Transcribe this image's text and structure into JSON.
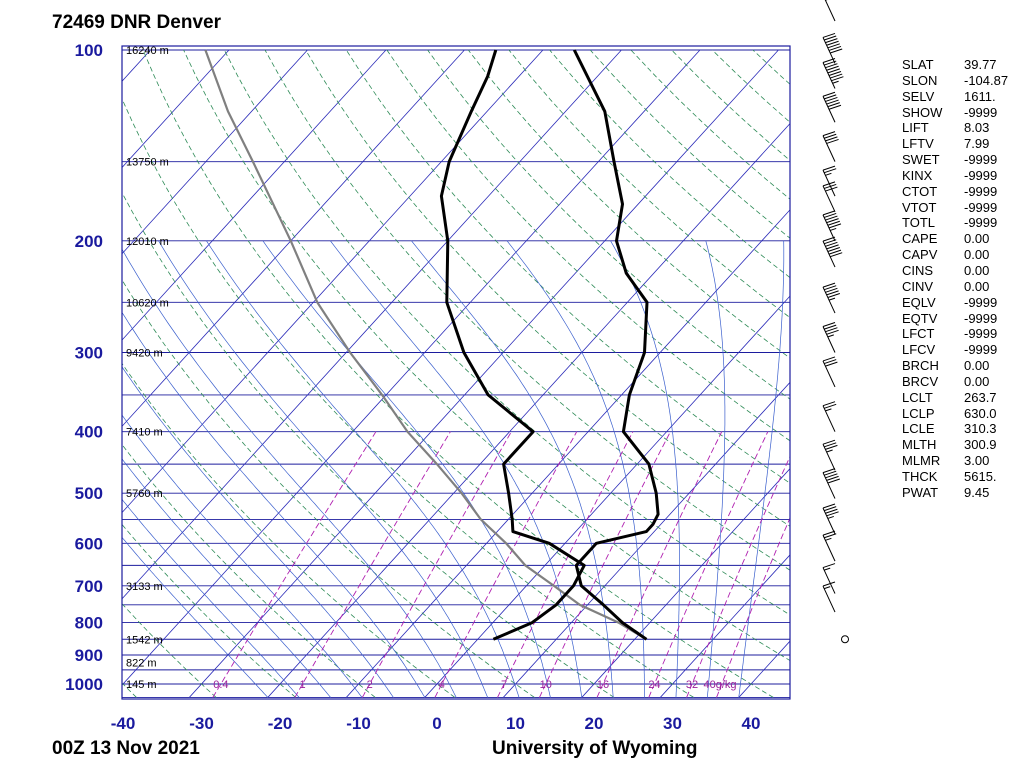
{
  "header": {
    "title": "72469 DNR Denver"
  },
  "footer": {
    "date": "00Z 13 Nov 2021",
    "source": "University of Wyoming"
  },
  "colors": {
    "isobar": "#1c1c9e",
    "isotherm": "#2a2ab8",
    "dry_adiabat": "#2e8b57",
    "moist_adiabat": "#3a5fcd",
    "mixing_ratio": "#b020b0",
    "profile": "#000000",
    "parcel": "#808080",
    "pressure_label": "#1a1a9e",
    "mixing_label": "#9b209b"
  },
  "chart_data": {
    "type": "skew-t",
    "pressure_levels": [
      100,
      200,
      300,
      400,
      500,
      600,
      700,
      800,
      900,
      1000
    ],
    "pressure_labels": [
      "100",
      "200",
      "300",
      "400",
      "500",
      "600",
      "700",
      "800",
      "900",
      "1000"
    ],
    "temperature_ticks": [
      -40,
      -30,
      -20,
      -10,
      0,
      10,
      20,
      30,
      40
    ],
    "temperature_labels": [
      "-40",
      "-30",
      "-20",
      "-10",
      "0",
      "10",
      "20",
      "30",
      "40"
    ],
    "xlim": [
      -40,
      45
    ],
    "ylim": [
      1050,
      100
    ],
    "height_labels": [
      {
        "p": 100,
        "text": "16240 m"
      },
      {
        "p": 150,
        "text": "13750 m"
      },
      {
        "p": 200,
        "text": "12010 m"
      },
      {
        "p": 250,
        "text": "10620 m"
      },
      {
        "p": 300,
        "text": "9420 m"
      },
      {
        "p": 400,
        "text": "7410 m"
      },
      {
        "p": 500,
        "text": "5760 m"
      },
      {
        "p": 700,
        "text": "3133 m"
      },
      {
        "p": 850,
        "text": "1542 m"
      },
      {
        "p": 925,
        "text": "822 m"
      },
      {
        "p": 1000,
        "text": "145 m"
      }
    ],
    "mixing_ratio_labels": [
      "0.4",
      "1",
      "2",
      "4",
      "7",
      "10",
      "16",
      "24",
      "32",
      "40g/kg"
    ],
    "temperature_profile": [
      [
        850,
        21.5
      ],
      [
        800,
        16.5
      ],
      [
        750,
        12
      ],
      [
        700,
        7
      ],
      [
        650,
        4
      ],
      [
        600,
        4
      ],
      [
        575,
        9
      ],
      [
        560,
        9
      ],
      [
        540,
        8.5
      ],
      [
        500,
        5.8
      ],
      [
        450,
        1.5
      ],
      [
        400,
        -5.5
      ],
      [
        350,
        -9
      ],
      [
        300,
        -12
      ],
      [
        250,
        -17.5
      ],
      [
        225,
        -23.5
      ],
      [
        200,
        -28.5
      ],
      [
        175,
        -32
      ],
      [
        150,
        -38
      ],
      [
        125,
        -45
      ],
      [
        100,
        -56
      ]
    ],
    "dewpoint_profile": [
      [
        850,
        2
      ],
      [
        800,
        5
      ],
      [
        750,
        6
      ],
      [
        700,
        6
      ],
      [
        650,
        5
      ],
      [
        600,
        -2
      ],
      [
        575,
        -8
      ],
      [
        550,
        -9.5
      ],
      [
        500,
        -13
      ],
      [
        450,
        -17
      ],
      [
        400,
        -17
      ],
      [
        350,
        -27
      ],
      [
        300,
        -35
      ],
      [
        250,
        -43
      ],
      [
        200,
        -50
      ],
      [
        170,
        -56
      ],
      [
        150,
        -59
      ],
      [
        125,
        -62
      ],
      [
        110,
        -64
      ],
      [
        100,
        -66
      ]
    ],
    "parcel_path": [
      [
        850,
        21.5
      ],
      [
        800,
        16
      ],
      [
        750,
        9
      ],
      [
        700,
        3.5
      ],
      [
        650,
        -2.5
      ],
      [
        600,
        -7.5
      ],
      [
        550,
        -13.5
      ],
      [
        500,
        -19
      ],
      [
        450,
        -25.5
      ],
      [
        400,
        -33
      ],
      [
        350,
        -40.5
      ],
      [
        300,
        -49.5
      ],
      [
        250,
        -59.5
      ],
      [
        200,
        -70
      ],
      [
        150,
        -84
      ],
      [
        125,
        -93
      ],
      [
        100,
        -103
      ]
    ],
    "wind_barbs": [
      {
        "p": 90,
        "knots": 30
      },
      {
        "p": 105,
        "knots": 70
      },
      {
        "p": 115,
        "knots": 85
      },
      {
        "p": 130,
        "knots": 60
      },
      {
        "p": 150,
        "knots": 40
      },
      {
        "p": 170,
        "knots": 25
      },
      {
        "p": 180,
        "knots": 30
      },
      {
        "p": 200,
        "knots": 65
      },
      {
        "p": 220,
        "knots": 70
      },
      {
        "p": 260,
        "knots": 55
      },
      {
        "p": 300,
        "knots": 45
      },
      {
        "p": 340,
        "knots": 30
      },
      {
        "p": 400,
        "knots": 25
      },
      {
        "p": 460,
        "knots": 35
      },
      {
        "p": 510,
        "knots": 50
      },
      {
        "p": 580,
        "knots": 45
      },
      {
        "p": 640,
        "knots": 25
      },
      {
        "p": 720,
        "knots": 15
      },
      {
        "p": 770,
        "knots": 15
      },
      {
        "p": 850,
        "knots": 0
      }
    ]
  },
  "indices": [
    {
      "key": "SLAT",
      "value": "39.77"
    },
    {
      "key": "SLON",
      "value": "-104.87"
    },
    {
      "key": "SELV",
      "value": "1611."
    },
    {
      "key": "SHOW",
      "value": "-9999"
    },
    {
      "key": "LIFT",
      "value": "8.03"
    },
    {
      "key": "LFTV",
      "value": "7.99"
    },
    {
      "key": "SWET",
      "value": "-9999"
    },
    {
      "key": "KINX",
      "value": "-9999"
    },
    {
      "key": "CTOT",
      "value": "-9999"
    },
    {
      "key": "VTOT",
      "value": "-9999"
    },
    {
      "key": "TOTL",
      "value": "-9999"
    },
    {
      "key": "CAPE",
      "value": "0.00"
    },
    {
      "key": "CAPV",
      "value": "0.00"
    },
    {
      "key": "CINS",
      "value": "0.00"
    },
    {
      "key": "CINV",
      "value": "0.00"
    },
    {
      "key": "EQLV",
      "value": "-9999"
    },
    {
      "key": "EQTV",
      "value": "-9999"
    },
    {
      "key": "LFCT",
      "value": "-9999"
    },
    {
      "key": "LFCV",
      "value": "-9999"
    },
    {
      "key": "BRCH",
      "value": "0.00"
    },
    {
      "key": "BRCV",
      "value": "0.00"
    },
    {
      "key": "LCLT",
      "value": "263.7"
    },
    {
      "key": "LCLP",
      "value": "630.0"
    },
    {
      "key": "LCLE",
      "value": "310.3"
    },
    {
      "key": "MLTH",
      "value": "300.9"
    },
    {
      "key": "MLMR",
      "value": "3.00"
    },
    {
      "key": "THCK",
      "value": "5615."
    },
    {
      "key": "PWAT",
      "value": "9.45"
    }
  ]
}
